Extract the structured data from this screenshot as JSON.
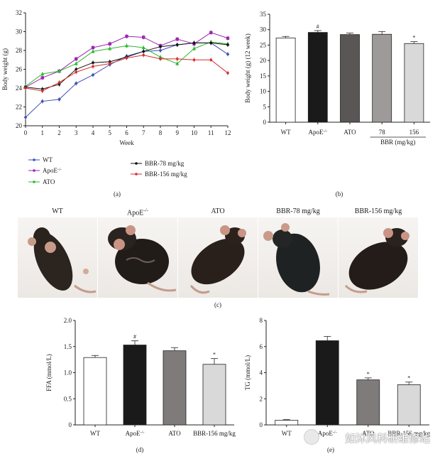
{
  "chart_data": [
    {
      "panel": "(a)",
      "type": "line",
      "title": "",
      "xlabel": "Week",
      "ylabel": "Body weight (g)",
      "ylim": [
        20,
        32
      ],
      "xlim": [
        0,
        12
      ],
      "x": [
        0,
        1,
        2,
        3,
        4,
        5,
        6,
        7,
        8,
        9,
        10,
        11,
        12
      ],
      "yticks": [
        "20",
        "22",
        "24",
        "26",
        "28",
        "30",
        "32"
      ],
      "xticks": [
        "0",
        "1",
        "2",
        "3",
        "4",
        "5",
        "6",
        "7",
        "8",
        "9",
        "10",
        "11",
        "12"
      ],
      "series": [
        {
          "name": "WT",
          "color": "#3f51b5",
          "marker": "diamond",
          "values": [
            20.9,
            22.6,
            22.8,
            24.5,
            25.4,
            26.5,
            27.4,
            27.9,
            28.0,
            28.6,
            28.8,
            28.8,
            27.6
          ]
        },
        {
          "name": "ApoE",
          "sup": "-/-",
          "color": "#9c27b0",
          "marker": "square",
          "values": [
            24.1,
            25.1,
            25.8,
            27.1,
            28.3,
            28.7,
            29.5,
            29.4,
            28.5,
            29.2,
            28.7,
            29.9,
            29.3
          ]
        },
        {
          "name": "ATO",
          "color": "#2eb82e",
          "marker": "triangle",
          "values": [
            24.2,
            25.5,
            25.8,
            26.6,
            27.9,
            28.2,
            28.5,
            28.3,
            27.3,
            26.6,
            28.2,
            28.9,
            28.7
          ]
        },
        {
          "name": "BBR-78 mg/kg",
          "color": "#111111",
          "marker": "circle",
          "values": [
            24.1,
            23.9,
            24.4,
            26.0,
            26.7,
            26.8,
            27.3,
            27.9,
            28.4,
            28.6,
            28.8,
            28.8,
            28.6
          ]
        },
        {
          "name": "BBR-156 mg/kg",
          "color": "#d32f2f",
          "marker": "circle",
          "values": [
            24.0,
            23.7,
            24.6,
            25.7,
            26.3,
            26.6,
            27.2,
            27.5,
            27.1,
            27.1,
            27.0,
            27.0,
            25.6
          ]
        }
      ]
    },
    {
      "panel": "(b)",
      "type": "bar",
      "ylabel": "Body weight (g) (12 week)",
      "ylim": [
        0,
        35
      ],
      "yticks": [
        "0",
        "5",
        "10",
        "15",
        "20",
        "25",
        "30",
        "35"
      ],
      "categories": [
        "WT",
        "ApoE",
        "ATO",
        "78",
        "156"
      ],
      "category_sup": [
        "",
        "-/-",
        "",
        "",
        ""
      ],
      "values": [
        27.3,
        29.1,
        28.4,
        28.5,
        25.5
      ],
      "errors": [
        0.5,
        0.6,
        0.5,
        0.9,
        0.6
      ],
      "colors": [
        "#ffffff",
        "#1a1a1a",
        "#5a5656",
        "#9e9a9a",
        "#d9d9d9"
      ],
      "annotations": [
        "",
        "#",
        "",
        "",
        "*"
      ],
      "group_label": "BBR (mg/kg)"
    },
    {
      "panel": "(d)",
      "type": "bar",
      "ylabel": "FFA (mmol/L)",
      "ylim": [
        0,
        2.0
      ],
      "yticks": [
        "0",
        "0.5",
        "1.0",
        "1.5",
        "2.0"
      ],
      "categories": [
        "WT",
        "ApoE",
        "ATO",
        "BBR-156 mg/kg"
      ],
      "category_sup": [
        "",
        "-/-",
        "",
        ""
      ],
      "values": [
        1.29,
        1.53,
        1.42,
        1.16
      ],
      "errors": [
        0.04,
        0.08,
        0.06,
        0.11
      ],
      "colors": [
        "#ffffff",
        "#1a1a1a",
        "#7f7b7b",
        "#d9d9d9"
      ],
      "annotations": [
        "",
        "#",
        "",
        "*"
      ]
    },
    {
      "panel": "(e)",
      "type": "bar",
      "ylabel": "TG (mmol/L)",
      "ylim": [
        0,
        8
      ],
      "yticks": [
        "0",
        "2",
        "4",
        "6",
        "8"
      ],
      "categories": [
        "WT",
        "ApoE",
        "ATO",
        "BBR-156 mg/kg"
      ],
      "category_sup": [
        "",
        "-/-",
        "",
        ""
      ],
      "values": [
        0.36,
        6.45,
        3.45,
        3.08
      ],
      "errors": [
        0.05,
        0.32,
        0.15,
        0.2
      ],
      "colors": [
        "#ffffff",
        "#1a1a1a",
        "#7f7b7b",
        "#d9d9d9"
      ],
      "annotations": [
        "",
        "",
        "*",
        "*"
      ]
    }
  ],
  "photos": {
    "labels": [
      "WT",
      "ApoE",
      "ATO",
      "BBR-78 mg/kg",
      "BBR-156 mg/kg"
    ],
    "sups": [
      "",
      "-/-",
      "",
      "",
      ""
    ],
    "panel": "(c)"
  },
  "watermark": "如沐风科研维修站"
}
